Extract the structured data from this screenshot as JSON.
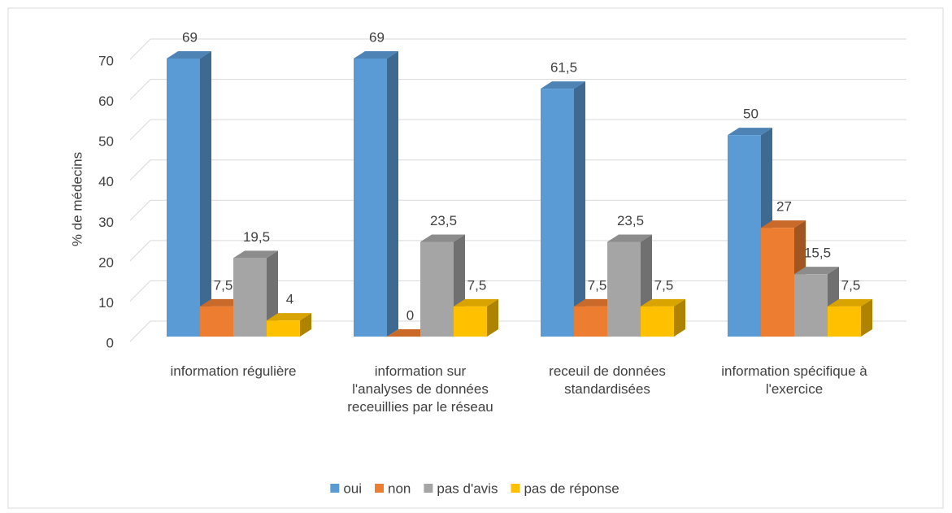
{
  "chart_data": {
    "type": "bar3d",
    "y_label": "% de médecins",
    "categories": [
      "information régulière",
      "information sur l'analyses de données receuillies par le réseau",
      "receuil de données standardisées",
      "information spécifique à l'exercice"
    ],
    "series": [
      {
        "name": "oui",
        "color": "#5b9bd5",
        "values": [
          69,
          69,
          61.5,
          50
        ],
        "value_labels": [
          "69",
          "69",
          "61,5",
          "50"
        ]
      },
      {
        "name": "non",
        "color": "#ed7d31",
        "values": [
          7.5,
          0,
          7.5,
          27
        ],
        "value_labels": [
          "7,5",
          "0",
          "7,5",
          "27"
        ]
      },
      {
        "name": "pas d'avis",
        "color": "#a5a5a5",
        "values": [
          19.5,
          23.5,
          23.5,
          15.5
        ],
        "value_labels": [
          "19,5",
          "23,5",
          "23,5",
          "15,5"
        ]
      },
      {
        "name": "pas de réponse",
        "color": "#ffc000",
        "values": [
          4,
          7.5,
          7.5,
          7.5
        ],
        "value_labels": [
          "4",
          "7,5",
          "7,5",
          "7,5"
        ]
      }
    ],
    "ylim": [
      0,
      70
    ],
    "yticks": [
      0,
      10,
      20,
      30,
      40,
      50,
      60,
      70
    ],
    "grid": true,
    "legend": "bottom"
  }
}
